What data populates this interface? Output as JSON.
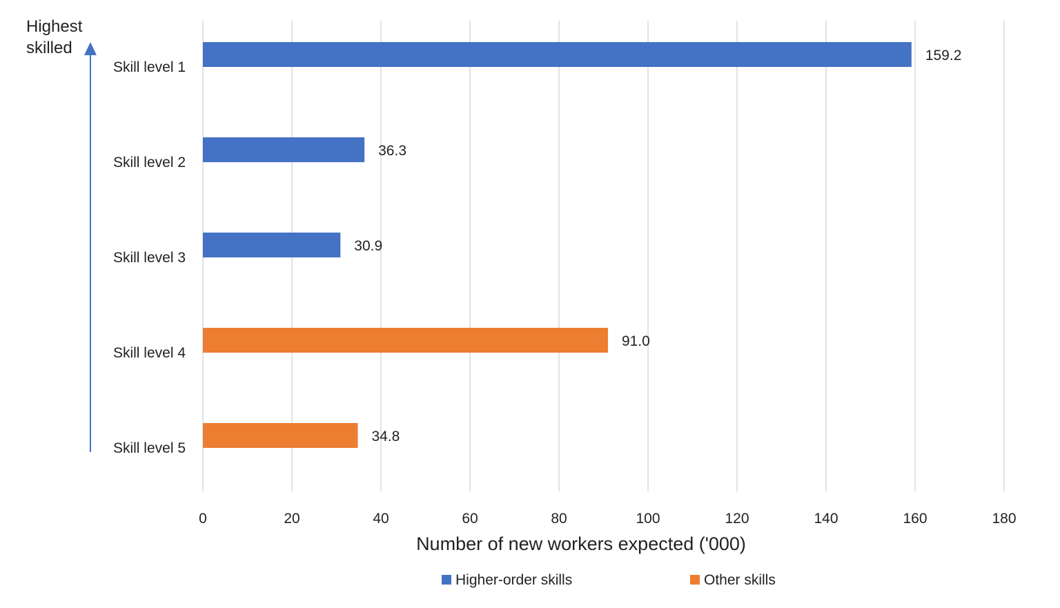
{
  "chart_data": {
    "type": "bar",
    "orientation": "horizontal",
    "categories": [
      "Skill level 1",
      "Skill level 2",
      "Skill level 3",
      "Skill level 4",
      "Skill level 5"
    ],
    "values": [
      159.2,
      36.3,
      30.9,
      91.0,
      34.8
    ],
    "value_labels": [
      "159.2",
      "36.3",
      "30.9",
      "91.0",
      "34.8"
    ],
    "bar_series": [
      "Higher-order skills",
      "Higher-order skills",
      "Higher-order skills",
      "Other skills",
      "Other skills"
    ],
    "series": [
      {
        "name": "Higher-order skills",
        "color": "#4472C4"
      },
      {
        "name": "Other skills",
        "color": "#ED7D31"
      }
    ],
    "xlabel": "Number of new workers expected ('000)",
    "xlim": [
      0,
      180
    ],
    "xticks": [
      0,
      20,
      40,
      60,
      80,
      100,
      120,
      140,
      160,
      180
    ],
    "grid": "vertical",
    "grid_color": "#d9d9d9",
    "legend_position": "bottom",
    "axis_annotation": {
      "text_line1": "Highest",
      "text_line2": "skilled",
      "arrow_color": "#4472C4"
    }
  }
}
